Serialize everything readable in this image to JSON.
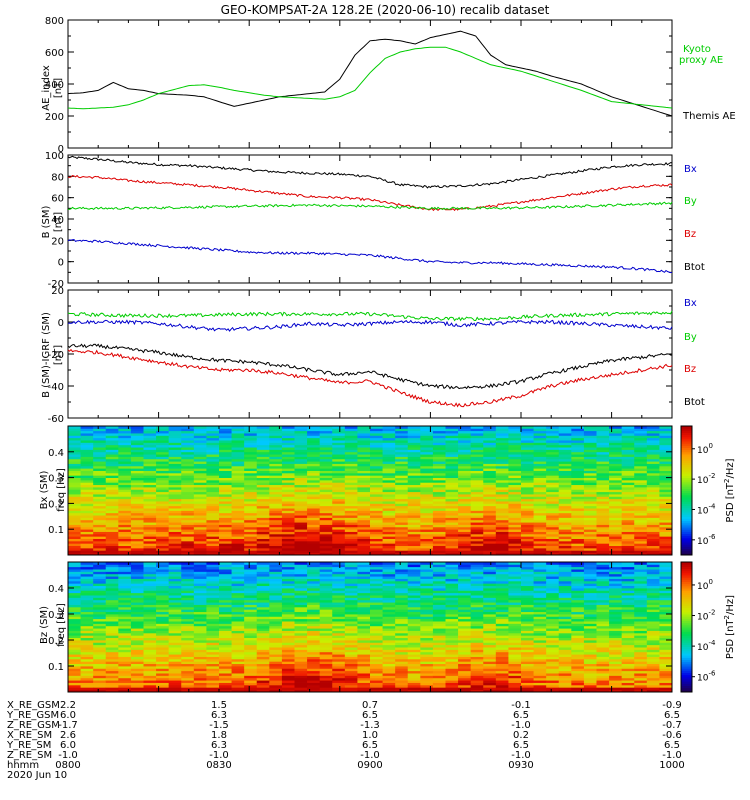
{
  "title": "GEO-KOMPSAT-2A 128.2E (2020-06-10) recalib dataset",
  "colors": {
    "black": "#000000",
    "green": "#00cc00",
    "red": "#dd0000",
    "blue": "#0000cc"
  },
  "chart_data": [
    {
      "type": "line",
      "panel": "ae",
      "ylabel": "AE_index [nT]",
      "ylim": [
        0,
        800
      ],
      "yticks": [
        0,
        200,
        400,
        600,
        800
      ],
      "xlim": [
        800,
        1000
      ],
      "x_unit": "minutes after 0800",
      "series": [
        {
          "name": "Themis AE",
          "color": "#000000",
          "x": [
            0,
            5,
            10,
            15,
            20,
            25,
            30,
            40,
            45,
            50,
            55,
            60,
            65,
            70,
            75,
            80,
            85,
            90,
            95,
            100,
            105,
            110,
            115,
            120,
            125,
            130,
            135,
            140,
            145,
            150,
            155,
            160,
            170,
            180,
            190,
            200
          ],
          "y": [
            340,
            345,
            360,
            410,
            370,
            360,
            340,
            330,
            320,
            290,
            260,
            280,
            300,
            320,
            330,
            340,
            350,
            430,
            580,
            670,
            680,
            670,
            650,
            690,
            710,
            730,
            700,
            580,
            520,
            500,
            480,
            450,
            400,
            320,
            260,
            200
          ]
        },
        {
          "name": "Kyoto proxy AE",
          "color": "#00cc00",
          "x": [
            0,
            5,
            10,
            15,
            20,
            25,
            30,
            40,
            45,
            50,
            55,
            60,
            65,
            70,
            75,
            80,
            85,
            90,
            95,
            100,
            105,
            110,
            115,
            120,
            125,
            130,
            135,
            140,
            145,
            150,
            155,
            160,
            170,
            180,
            190,
            200
          ],
          "y": [
            250,
            245,
            250,
            255,
            270,
            300,
            340,
            390,
            395,
            380,
            360,
            345,
            330,
            320,
            315,
            310,
            305,
            320,
            360,
            470,
            560,
            600,
            620,
            630,
            630,
            600,
            560,
            520,
            500,
            480,
            450,
            420,
            360,
            290,
            270,
            250
          ]
        }
      ],
      "legend": [
        "Kyoto proxy AE",
        "Themis AE"
      ]
    },
    {
      "type": "line",
      "panel": "bsm",
      "ylabel": "B (SM) [nT]",
      "ylim": [
        -20,
        100
      ],
      "yticks": [
        -20,
        0,
        20,
        40,
        60,
        80,
        100
      ],
      "xlim": [
        800,
        1000
      ],
      "series": [
        {
          "name": "Btot",
          "color": "#000000",
          "x": [
            0,
            10,
            20,
            30,
            40,
            50,
            60,
            70,
            80,
            90,
            100,
            110,
            120,
            130,
            140,
            150,
            160,
            170,
            180,
            190,
            200
          ],
          "y": [
            98,
            96,
            93,
            91,
            90,
            88,
            86,
            84,
            83,
            82,
            80,
            72,
            70,
            71,
            73,
            77,
            81,
            85,
            89,
            91,
            92
          ]
        },
        {
          "name": "Bz",
          "color": "#dd0000",
          "x": [
            0,
            10,
            20,
            30,
            40,
            50,
            60,
            70,
            80,
            90,
            100,
            110,
            120,
            130,
            140,
            150,
            160,
            170,
            180,
            190,
            200
          ],
          "y": [
            80,
            79,
            76,
            74,
            72,
            70,
            67,
            64,
            61,
            60,
            58,
            53,
            49,
            49,
            52,
            56,
            60,
            64,
            68,
            71,
            72
          ]
        },
        {
          "name": "By",
          "color": "#00cc00",
          "x": [
            0,
            20,
            40,
            60,
            80,
            100,
            120,
            140,
            160,
            180,
            200
          ],
          "y": [
            50,
            50,
            51,
            52,
            53,
            52,
            50,
            50,
            51,
            53,
            55
          ]
        },
        {
          "name": "Bx",
          "color": "#0000cc",
          "x": [
            0,
            10,
            20,
            30,
            40,
            50,
            60,
            70,
            80,
            90,
            100,
            110,
            120,
            130,
            140,
            150,
            160,
            170,
            180,
            190,
            200
          ],
          "y": [
            20,
            19,
            17,
            15,
            13,
            11,
            9,
            8,
            8,
            7,
            6,
            3,
            0,
            -1,
            -1,
            -2,
            -3,
            -4,
            -5,
            -7,
            -10
          ]
        }
      ],
      "legend": [
        "Bx",
        "By",
        "Bz",
        "Btot"
      ]
    },
    {
      "type": "line",
      "panel": "bigrf",
      "ylabel": "B (SM)-IGRF (SM) [nT]",
      "ylim": [
        -60,
        20
      ],
      "yticks": [
        -60,
        -40,
        -20,
        0,
        20
      ],
      "xlim": [
        800,
        1000
      ],
      "series": [
        {
          "name": "By",
          "color": "#00cc00",
          "x": [
            0,
            20,
            40,
            60,
            80,
            100,
            120,
            140,
            160,
            180,
            200
          ],
          "y": [
            5,
            4,
            4,
            5,
            5,
            5,
            2,
            2,
            4,
            5,
            6
          ]
        },
        {
          "name": "Bx",
          "color": "#0000cc",
          "x": [
            0,
            10,
            20,
            30,
            40,
            50,
            60,
            70,
            80,
            90,
            100,
            110,
            120,
            130,
            140,
            150,
            160,
            170,
            180,
            190,
            200
          ],
          "y": [
            0,
            0,
            0,
            -1,
            -3,
            -5,
            -4,
            -3,
            -1,
            -2,
            -1,
            0,
            0,
            -2,
            -1,
            0,
            0,
            -1,
            -2,
            -3,
            -4
          ]
        },
        {
          "name": "Btot",
          "color": "#000000",
          "x": [
            0,
            10,
            20,
            30,
            40,
            50,
            60,
            70,
            80,
            90,
            100,
            110,
            120,
            130,
            140,
            150,
            160,
            170,
            180,
            190,
            200
          ],
          "y": [
            -15,
            -15,
            -17,
            -19,
            -22,
            -24,
            -25,
            -27,
            -30,
            -33,
            -31,
            -36,
            -40,
            -41,
            -40,
            -37,
            -32,
            -28,
            -24,
            -22,
            -20
          ]
        },
        {
          "name": "Bz",
          "color": "#dd0000",
          "x": [
            0,
            10,
            20,
            30,
            40,
            50,
            60,
            70,
            80,
            90,
            100,
            110,
            120,
            130,
            140,
            150,
            160,
            170,
            180,
            190,
            200
          ],
          "y": [
            -18,
            -19,
            -22,
            -25,
            -28,
            -30,
            -30,
            -32,
            -35,
            -38,
            -37,
            -44,
            -50,
            -52,
            -50,
            -46,
            -40,
            -36,
            -33,
            -30,
            -27
          ]
        }
      ],
      "legend": [
        "Bx",
        "By",
        "Bz",
        "Btot"
      ]
    },
    {
      "type": "heatmap",
      "panel": "bx_psd",
      "ylabel": "Bx (SM) freq [Hz]",
      "ylim": [
        0,
        0.5
      ],
      "yticks": [
        0.1,
        0.2,
        0.3,
        0.4
      ],
      "colorbar_label": "PSD [nT^2/Hz]",
      "colorbar_ticks": [
        "10^0",
        "10^-2",
        "10^-4",
        "10^-6"
      ],
      "colorbar_exp": [
        0,
        -2,
        -4,
        -6
      ],
      "colorbar_range": [
        -7,
        1.5
      ]
    },
    {
      "type": "heatmap",
      "panel": "bz_psd",
      "ylabel": "Bz (SM) freq [Hz]",
      "ylim": [
        0,
        0.5
      ],
      "yticks": [
        0.1,
        0.2,
        0.3,
        0.4
      ],
      "colorbar_label": "PSD [nT^2/Hz]",
      "colorbar_ticks": [
        "10^0",
        "10^-2",
        "10^-4",
        "10^-6"
      ],
      "colorbar_exp": [
        0,
        -2,
        -4,
        -6
      ],
      "colorbar_range": [
        -7,
        1.5
      ]
    }
  ],
  "labels": {
    "ae_ylabel_1": "AE_index",
    "ae_ylabel_2": "[nT]",
    "bsm_ylabel_1": "B (SM)",
    "bsm_ylabel_2": "[nT]",
    "bigrf_ylabel_1": "B (SM)-IGRF (SM)",
    "bigrf_ylabel_2": "[nT]",
    "bx_ylabel_1": "Bx (SM)",
    "bx_ylabel_2": "freq [Hz]",
    "bz_ylabel_1": "Bz (SM)",
    "bz_ylabel_2": "freq [Hz]",
    "psd": "PSD",
    "psd_unit": "[nT",
    "psd_unit_sup": "2",
    "psd_unit_end": "/Hz]"
  },
  "ephemeris": {
    "labels": [
      "X_RE_GSM",
      "Y_RE_GSM",
      "Z_RE_GSM",
      "X_RE_SM",
      "Y_RE_SM",
      "Z_RE_SM",
      "hhmm"
    ],
    "columns": [
      [
        "2.2",
        "6.0",
        "-1.7",
        "2.6",
        "6.0",
        "-1.0",
        "0800"
      ],
      [
        "1.5",
        "6.3",
        "-1.5",
        "1.8",
        "6.3",
        "-1.0",
        "0830"
      ],
      [
        "0.7",
        "6.5",
        "-1.3",
        "1.0",
        "6.5",
        "-1.0",
        "0900"
      ],
      [
        "-0.1",
        "6.5",
        "-1.0",
        "0.2",
        "6.5",
        "-1.0",
        "0930"
      ],
      [
        "-0.9",
        "6.5",
        "-0.7",
        "-0.6",
        "6.5",
        "-1.0",
        "1000"
      ]
    ],
    "date": "2020 Jun 10"
  }
}
